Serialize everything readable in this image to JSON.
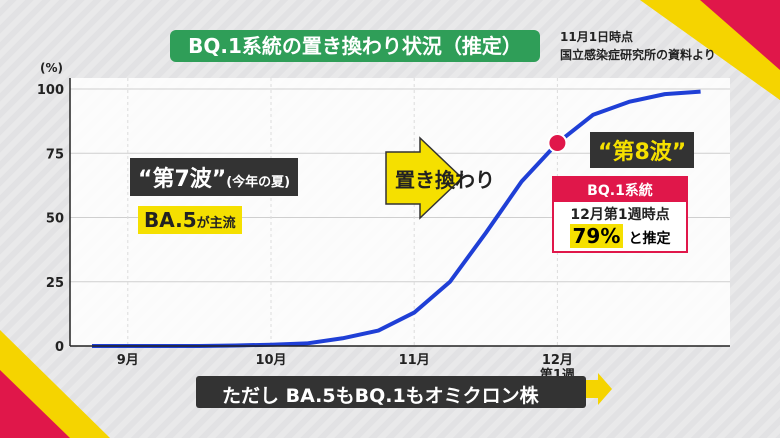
{
  "chart_data": {
    "type": "line",
    "title": "BQ.1系統の置き換わり状況（推定）",
    "notes": [
      "11月1日時点",
      "国立感染症研究所の資料より"
    ],
    "y_unit": "(%)",
    "categories": [
      null,
      "9月",
      null,
      null,
      null,
      "10月",
      null,
      null,
      null,
      "11月",
      null,
      null,
      null,
      "12月\n第1週",
      null,
      null,
      null,
      null
    ],
    "series": [
      {
        "name": "BQ.1",
        "color": "#1f3fd6",
        "values": [
          0,
          0,
          0,
          0,
          0.2,
          0.5,
          1,
          3,
          6,
          13,
          25,
          44,
          64,
          79,
          90,
          95,
          98,
          99
        ]
      }
    ],
    "marker_color": "#e0174a",
    "ylim": [
      0,
      100
    ],
    "yticks": [
      0,
      25,
      50,
      75,
      100
    ],
    "grid": true,
    "annotations": {
      "wave7": "“第7波”",
      "wave7_note": "(今年の夏)",
      "ba5": "BA.5",
      "ba5_note": "が主流",
      "arrow": "置き換わり",
      "wave8": "“第8波”",
      "box_title": "BQ.1系統",
      "box_line1": "12月第1週時点",
      "box_value": "79%",
      "box_value_note": "と推定"
    },
    "footer": "ただし BA.5もBQ.1もオミクロン株"
  }
}
